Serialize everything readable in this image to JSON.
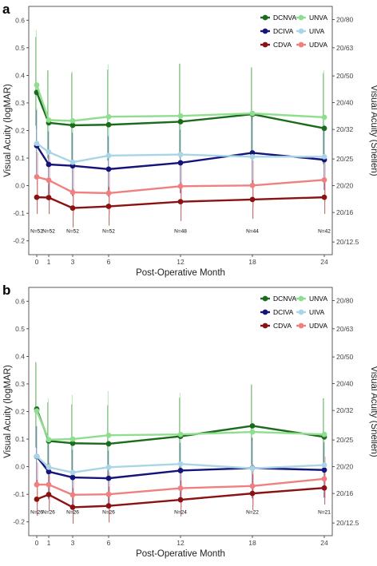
{
  "chart_data": [
    {
      "type": "line",
      "panel_label": "a",
      "x": [
        0,
        1,
        3,
        6,
        12,
        18,
        24
      ],
      "x_ticks": [
        0,
        1,
        3,
        6,
        12,
        18,
        24
      ],
      "xlabel": "Post-Operative Month",
      "ylabel": "Visual Acuity (logMAR)",
      "ylabel_right": "Visual Acuity (Snellen)",
      "ylim": [
        -0.25,
        0.65
      ],
      "y_ticks": [
        -0.2,
        -0.1,
        0.0,
        0.1,
        0.2,
        0.3,
        0.4,
        0.5,
        0.6
      ],
      "y_tick_labels": [
        "-0.2",
        "-0.1",
        "0.0",
        "0.1",
        "0.2",
        "0.3",
        "0.4",
        "0.5",
        "0.6"
      ],
      "snellen_ticks": [
        {
          "label": "20/80",
          "logmar": 0.602
        },
        {
          "label": "20/63",
          "logmar": 0.5
        },
        {
          "label": "20/50",
          "logmar": 0.398
        },
        {
          "label": "20/40",
          "logmar": 0.301
        },
        {
          "label": "20/32",
          "logmar": 0.204
        },
        {
          "label": "20/25",
          "logmar": 0.097
        },
        {
          "label": "20/20",
          "logmar": 0.0
        },
        {
          "label": "20/16",
          "logmar": -0.097
        },
        {
          "label": "20/12.5",
          "logmar": -0.204
        }
      ],
      "n_labels": [
        {
          "x": 0,
          "text": "N=52"
        },
        {
          "x": 1,
          "text": "N=52"
        },
        {
          "x": 3,
          "text": "N=52"
        },
        {
          "x": 6,
          "text": "N=52"
        },
        {
          "x": 12,
          "text": "N=48"
        },
        {
          "x": 18,
          "text": "N=44"
        },
        {
          "x": 24,
          "text": "N=42"
        }
      ],
      "n_label_y": -0.165,
      "legend_position": "top-right",
      "series": [
        {
          "name": "DCNVA",
          "color": "#1a6b1a",
          "values": [
            0.338,
            0.228,
            0.219,
            0.221,
            0.232,
            0.259,
            0.208
          ],
          "err_low": [
            0.12,
            0.13,
            0.14,
            0.13,
            0.13,
            0.14,
            0.13
          ],
          "err_high": [
            0.2,
            0.19,
            0.19,
            0.2,
            0.21,
            0.17,
            0.2
          ]
        },
        {
          "name": "UNVA",
          "color": "#8fde8f",
          "values": [
            0.365,
            0.238,
            0.235,
            0.25,
            0.253,
            0.262,
            0.248
          ],
          "err_low": [
            0.16,
            0.13,
            0.14,
            0.14,
            0.14,
            0.15,
            0.14
          ],
          "err_high": [
            0.2,
            0.18,
            0.18,
            0.19,
            0.19,
            0.16,
            0.17
          ]
        },
        {
          "name": "DCIVA",
          "color": "#14147a",
          "values": [
            0.145,
            0.077,
            0.072,
            0.06,
            0.083,
            0.119,
            0.094
          ],
          "err_low": [
            0.12,
            0.11,
            0.11,
            0.1,
            0.11,
            0.12,
            0.11
          ],
          "err_high": [
            0.13,
            0.12,
            0.12,
            0.12,
            0.12,
            0.13,
            0.12
          ]
        },
        {
          "name": "UIVA",
          "color": "#a8d6e6",
          "values": [
            0.153,
            0.122,
            0.085,
            0.109,
            0.113,
            0.105,
            0.105
          ],
          "err_low": [
            0.13,
            0.12,
            0.11,
            0.11,
            0.12,
            0.12,
            0.12
          ],
          "err_high": [
            0.13,
            0.12,
            0.12,
            0.12,
            0.12,
            0.13,
            0.12
          ]
        },
        {
          "name": "CDVA",
          "color": "#8b1212",
          "values": [
            -0.042,
            -0.043,
            -0.081,
            -0.075,
            -0.058,
            -0.05,
            -0.042
          ],
          "err_low": [
            0.06,
            0.06,
            0.07,
            0.07,
            0.07,
            0.07,
            0.06
          ],
          "err_high": [
            0.07,
            0.07,
            0.07,
            0.07,
            0.07,
            0.07,
            0.07
          ]
        },
        {
          "name": "UDVA",
          "color": "#f08080",
          "values": [
            0.032,
            0.02,
            -0.024,
            -0.027,
            -0.002,
            0.001,
            0.021
          ],
          "err_low": [
            0.08,
            0.08,
            0.08,
            0.08,
            0.08,
            0.08,
            0.08
          ],
          "err_high": [
            0.09,
            0.09,
            0.09,
            0.09,
            0.09,
            0.09,
            0.09
          ]
        }
      ]
    },
    {
      "type": "line",
      "panel_label": "b",
      "x": [
        0,
        1,
        3,
        6,
        12,
        18,
        24
      ],
      "x_ticks": [
        0,
        1,
        3,
        6,
        12,
        18,
        24
      ],
      "xlabel": "Post-Operative Month",
      "ylabel": "Visual Acuity (logMAR)",
      "ylabel_right": "Visual Acuity (Snellen)",
      "ylim": [
        -0.25,
        0.65
      ],
      "y_ticks": [
        -0.2,
        -0.1,
        0.0,
        0.1,
        0.2,
        0.3,
        0.4,
        0.5,
        0.6
      ],
      "y_tick_labels": [
        "-0.2",
        "-0.1",
        "0.0",
        "0.1",
        "0.2",
        "0.3",
        "0.4",
        "0.5",
        "0.6"
      ],
      "snellen_ticks": [
        {
          "label": "20/80",
          "logmar": 0.602
        },
        {
          "label": "20/63",
          "logmar": 0.5
        },
        {
          "label": "20/50",
          "logmar": 0.398
        },
        {
          "label": "20/40",
          "logmar": 0.301
        },
        {
          "label": "20/32",
          "logmar": 0.204
        },
        {
          "label": "20/25",
          "logmar": 0.097
        },
        {
          "label": "20/20",
          "logmar": 0.0
        },
        {
          "label": "20/16",
          "logmar": -0.097
        },
        {
          "label": "20/12.5",
          "logmar": -0.204
        }
      ],
      "n_labels": [
        {
          "x": 0,
          "text": "N=26"
        },
        {
          "x": 1,
          "text": "N=26"
        },
        {
          "x": 3,
          "text": "N=26"
        },
        {
          "x": 6,
          "text": "N=26"
        },
        {
          "x": 12,
          "text": "N=24"
        },
        {
          "x": 18,
          "text": "N=22"
        },
        {
          "x": 24,
          "text": "N=21"
        }
      ],
      "n_label_y": -0.165,
      "legend_position": "top-right",
      "series": [
        {
          "name": "DCNVA",
          "color": "#1a6b1a",
          "values": [
            0.209,
            0.093,
            0.085,
            0.083,
            0.11,
            0.148,
            0.108
          ],
          "err_low": [
            0.14,
            0.12,
            0.13,
            0.12,
            0.13,
            0.14,
            0.13
          ],
          "err_high": [
            0.17,
            0.14,
            0.14,
            0.14,
            0.14,
            0.15,
            0.14
          ]
        },
        {
          "name": "UNVA",
          "color": "#8fde8f",
          "values": [
            0.202,
            0.098,
            0.1,
            0.114,
            0.117,
            0.126,
            0.117
          ],
          "err_low": [
            0.13,
            0.12,
            0.12,
            0.13,
            0.13,
            0.13,
            0.13
          ],
          "err_high": [
            0.17,
            0.15,
            0.16,
            0.16,
            0.15,
            0.14,
            0.13
          ]
        },
        {
          "name": "DCIVA",
          "color": "#14147a",
          "values": [
            0.037,
            -0.018,
            -0.039,
            -0.042,
            -0.014,
            -0.005,
            -0.012
          ],
          "err_low": [
            0.1,
            0.1,
            0.1,
            0.1,
            0.1,
            0.11,
            0.1
          ],
          "err_high": [
            0.11,
            0.1,
            0.1,
            0.1,
            0.1,
            0.11,
            0.1
          ]
        },
        {
          "name": "UIVA",
          "color": "#a8d6e6",
          "values": [
            0.038,
            -0.002,
            -0.021,
            -0.002,
            0.01,
            -0.006,
            0.006
          ],
          "err_low": [
            0.1,
            0.1,
            0.1,
            0.1,
            0.1,
            0.1,
            0.1
          ],
          "err_high": [
            0.11,
            0.1,
            0.1,
            0.1,
            0.1,
            0.1,
            0.1
          ]
        },
        {
          "name": "CDVA",
          "color": "#8b1212",
          "values": [
            -0.118,
            -0.101,
            -0.147,
            -0.142,
            -0.12,
            -0.097,
            -0.077
          ],
          "err_low": [
            0.06,
            0.06,
            0.06,
            0.06,
            0.06,
            0.06,
            0.06
          ],
          "err_high": [
            0.07,
            0.07,
            0.07,
            0.07,
            0.07,
            0.07,
            0.07
          ]
        },
        {
          "name": "UDVA",
          "color": "#f08080",
          "values": [
            -0.065,
            -0.065,
            -0.102,
            -0.1,
            -0.078,
            -0.07,
            -0.044
          ],
          "err_low": [
            0.07,
            0.07,
            0.07,
            0.07,
            0.07,
            0.07,
            0.07
          ],
          "err_high": [
            0.08,
            0.08,
            0.08,
            0.08,
            0.08,
            0.08,
            0.08
          ]
        }
      ]
    }
  ]
}
